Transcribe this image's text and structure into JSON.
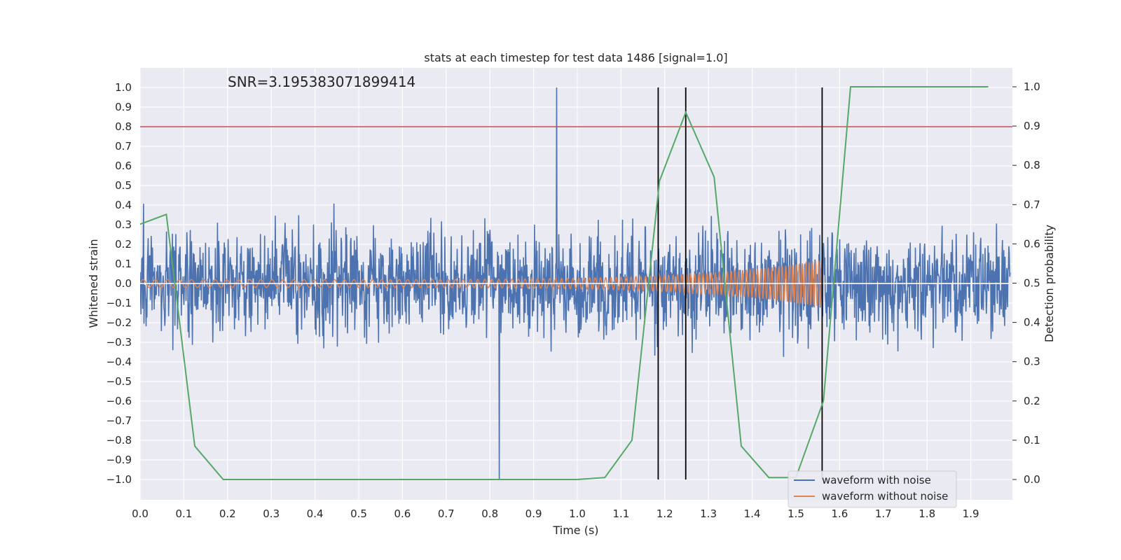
{
  "chart_data": {
    "type": "line",
    "title": "stats at each timestep for test data 1486 [signal=1.0]",
    "annotation": "SNR=3.195383071899414",
    "xlabel": "Time (s)",
    "ylabel": "Whitened strain",
    "ylabel_right": "Detection probability",
    "xlim": [
      0.0,
      1.99
    ],
    "ylim": [
      -1.1,
      1.1
    ],
    "ylim_right": [
      -0.05,
      1.05
    ],
    "x_ticks": [
      "0.0",
      "0.1",
      "0.2",
      "0.3",
      "0.4",
      "0.5",
      "0.6",
      "0.7",
      "0.8",
      "0.9",
      "1.0",
      "1.1",
      "1.2",
      "1.3",
      "1.4",
      "1.5",
      "1.6",
      "1.7",
      "1.8",
      "1.9"
    ],
    "y_ticks": [
      "1.0",
      "0.9",
      "0.8",
      "0.7",
      "0.6",
      "0.5",
      "0.4",
      "0.3",
      "0.2",
      "0.1",
      "0.0",
      "−0.1",
      "−0.2",
      "−0.3",
      "−0.4",
      "−0.5",
      "−0.6",
      "−0.7",
      "−0.8",
      "−0.9",
      "−1.0"
    ],
    "y_right_ticks": [
      "1.0",
      "0.9",
      "0.8",
      "0.7",
      "0.6",
      "0.5",
      "0.4",
      "0.3",
      "0.2",
      "0.1",
      "0.0"
    ],
    "threshold": {
      "value": 0.8,
      "color": "#c44e52"
    },
    "zero_line": {
      "value": 0.0,
      "color": "#ffffff"
    },
    "vertical_markers": [
      1.185,
      1.248,
      1.56
    ],
    "series": [
      {
        "name": "waveform with noise",
        "color": "#4c72b0",
        "kind": "noise",
        "samples": 2048,
        "seed": 1486,
        "peak_max": 1.0,
        "peak_min": -1.0
      },
      {
        "name": "waveform without noise",
        "color": "#dd8452",
        "kind": "chirp",
        "start": 0.0,
        "end": 1.56,
        "amp_start": 0.02,
        "amp_end": 0.12
      },
      {
        "name": "detection probability",
        "color": "#55a868",
        "axis": "right",
        "x": [
          0.0,
          0.06,
          0.125,
          0.19,
          0.4,
          0.6,
          0.8,
          1.0,
          1.063,
          1.125,
          1.188,
          1.248,
          1.313,
          1.375,
          1.438,
          1.5,
          1.563,
          1.625,
          1.94
        ],
        "y": [
          0.65,
          0.675,
          0.085,
          0.0,
          0.0,
          0.0,
          0.0,
          0.0,
          0.005,
          0.1,
          0.76,
          0.935,
          0.77,
          0.085,
          0.005,
          0.005,
          0.2,
          1.0,
          1.0
        ]
      }
    ],
    "legend": {
      "location": "lower-right",
      "entries": [
        "waveform with noise",
        "waveform without noise"
      ]
    }
  }
}
